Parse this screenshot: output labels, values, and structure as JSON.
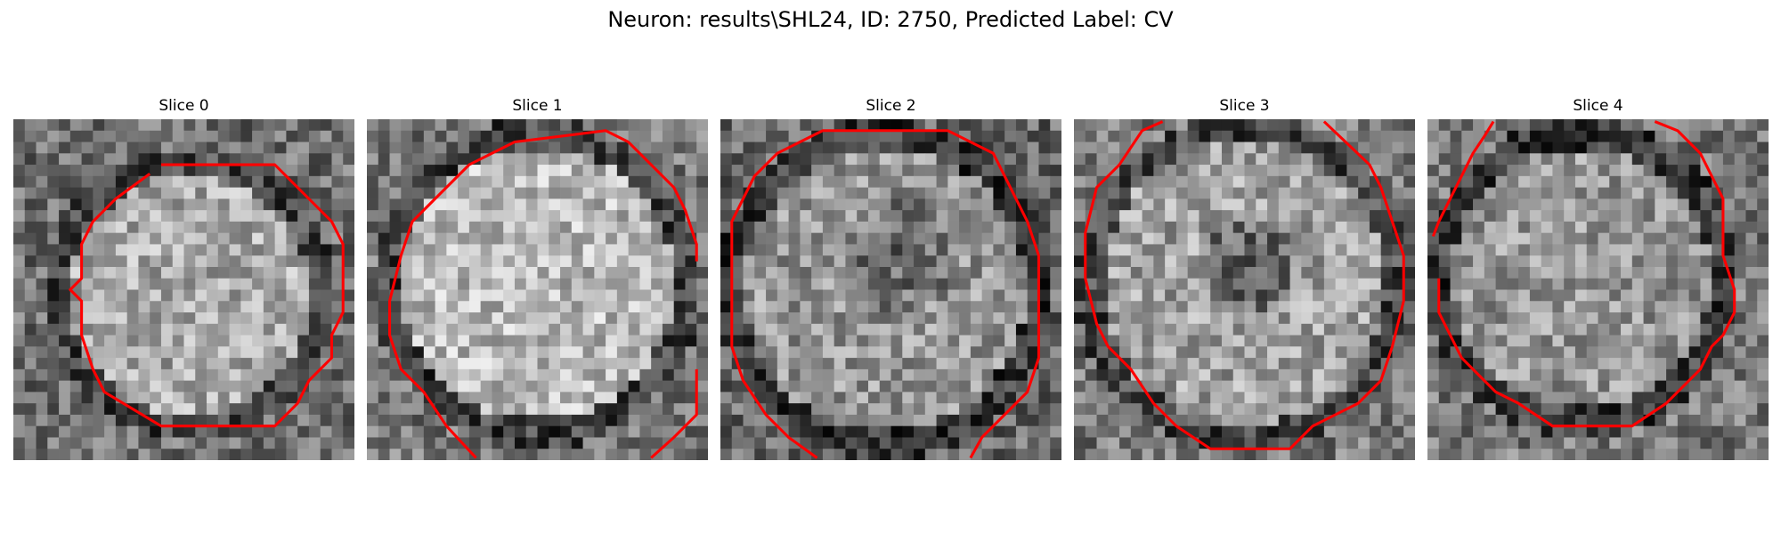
{
  "figure": {
    "title": "Neuron: results\\SHL24, ID: 2750, Predicted Label: CV"
  },
  "panels": [
    {
      "label": "Slice 0",
      "contour_color": "#ff0000"
    },
    {
      "label": "Slice 1",
      "contour_color": "#ff0000"
    },
    {
      "label": "Slice 2",
      "contour_color": "#ff0000"
    },
    {
      "label": "Slice 3",
      "contour_color": "#ff0000"
    },
    {
      "label": "Slice 4",
      "contour_color": "#ff0000"
    }
  ]
}
